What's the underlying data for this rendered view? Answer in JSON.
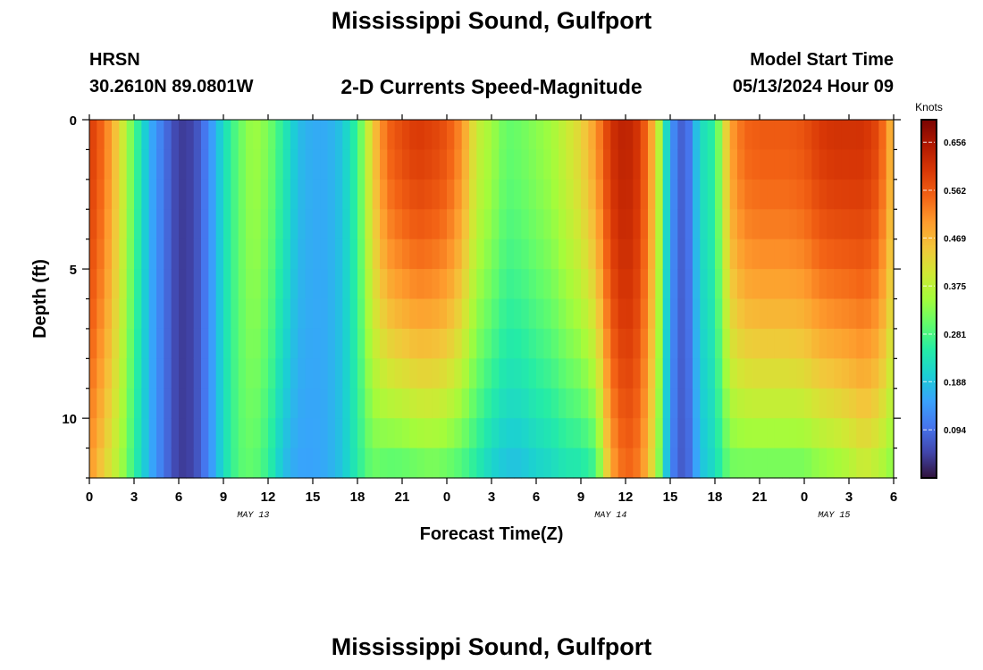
{
  "header": {
    "title": "Mississippi Sound, Gulfport",
    "station": "HRSN",
    "coords": "30.2610N  89.0801W",
    "subtitle": "2-D Currents Speed-Magnitude",
    "model_start_label": "Model Start Time",
    "model_start_value": "05/13/2024 Hour 09",
    "repeat_title": "Mississippi Sound, Gulfport"
  },
  "chart_data": {
    "type": "heatmap",
    "xlabel": "Forecast Time(Z)",
    "ylabel": "Depth (ft)",
    "colorbar_title": "Knots",
    "x_ticks": [
      "0",
      "3",
      "6",
      "9",
      "12",
      "15",
      "18",
      "21",
      "0",
      "3",
      "6",
      "9",
      "12",
      "15",
      "18",
      "21",
      "0",
      "3",
      "6"
    ],
    "date_labels": [
      {
        "label": "MAY 13",
        "at_hour": 11
      },
      {
        "label": "MAY 14",
        "at_hour": 35
      },
      {
        "label": "MAY 15",
        "at_hour": 50
      }
    ],
    "x_range_hours": [
      0,
      54
    ],
    "y_ticks": [
      0,
      5,
      10
    ],
    "y_range_ft": [
      0,
      12
    ],
    "y_inverted": true,
    "colorbar_ticks": [
      0.094,
      0.188,
      0.281,
      0.375,
      0.469,
      0.562,
      0.656
    ],
    "colorbar_range": [
      0.0,
      0.7
    ],
    "colorscale": [
      "#30123b",
      "#4145ab",
      "#4675ed",
      "#39a2fc",
      "#1bcfd4",
      "#24eca6",
      "#61fc6c",
      "#a4fc3b",
      "#d1e834",
      "#f3c63a",
      "#fe9b2d",
      "#f36315",
      "#d93806",
      "#b11901",
      "#7a0402"
    ],
    "surface_time_hours": [
      0,
      1,
      2,
      3,
      4,
      5,
      6,
      7,
      8,
      9,
      10,
      11,
      12,
      13,
      14,
      15,
      16,
      17,
      18,
      19,
      20,
      21,
      22,
      23,
      24,
      25,
      26,
      27,
      28,
      29,
      30,
      31,
      32,
      33,
      34,
      35,
      36,
      37,
      38,
      39,
      40,
      41,
      42,
      43,
      44,
      45,
      46,
      47,
      48,
      49,
      50,
      51,
      52,
      53,
      54
    ],
    "surface_speed_knots": [
      0.6,
      0.54,
      0.43,
      0.29,
      0.17,
      0.1,
      0.04,
      0.05,
      0.12,
      0.22,
      0.3,
      0.35,
      0.32,
      0.25,
      0.18,
      0.16,
      0.16,
      0.19,
      0.27,
      0.44,
      0.55,
      0.58,
      0.6,
      0.59,
      0.57,
      0.51,
      0.39,
      0.35,
      0.3,
      0.31,
      0.33,
      0.35,
      0.39,
      0.43,
      0.5,
      0.61,
      0.64,
      0.6,
      0.45,
      0.14,
      0.06,
      0.22,
      0.26,
      0.49,
      0.55,
      0.56,
      0.56,
      0.56,
      0.57,
      0.6,
      0.61,
      0.61,
      0.61,
      0.58,
      0.45
    ],
    "bottom_speed_knots": [
      0.5,
      0.43,
      0.36,
      0.26,
      0.17,
      0.1,
      0.04,
      0.05,
      0.12,
      0.22,
      0.29,
      0.3,
      0.26,
      0.18,
      0.15,
      0.15,
      0.16,
      0.19,
      0.25,
      0.3,
      0.28,
      0.28,
      0.29,
      0.3,
      0.29,
      0.27,
      0.24,
      0.2,
      0.18,
      0.18,
      0.2,
      0.21,
      0.23,
      0.23,
      0.26,
      0.48,
      0.55,
      0.52,
      0.39,
      0.12,
      0.06,
      0.18,
      0.22,
      0.3,
      0.3,
      0.3,
      0.3,
      0.3,
      0.3,
      0.32,
      0.33,
      0.35,
      0.38,
      0.36,
      0.32
    ]
  }
}
